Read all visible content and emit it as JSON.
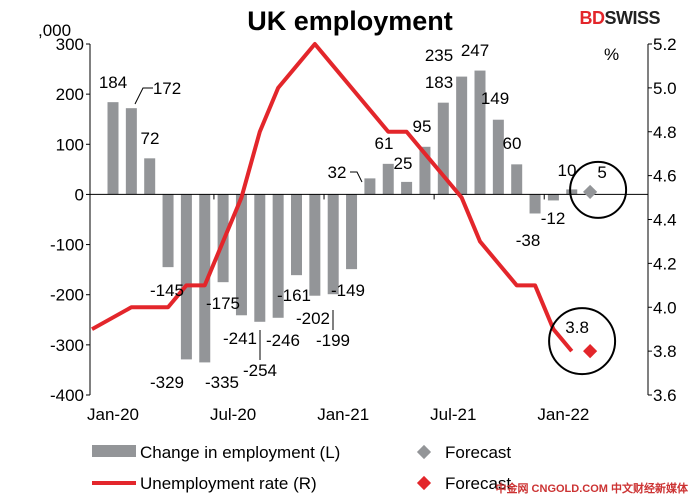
{
  "chart_data": {
    "type": "bar+line",
    "title": "UK employment",
    "left_unit": ",000",
    "right_unit": "%",
    "categories": [
      "Jan-20",
      "Feb-20",
      "Mar-20",
      "Apr-20",
      "May-20",
      "Jun-20",
      "Jul-20",
      "Aug-20",
      "Sep-20",
      "Oct-20",
      "Nov-20",
      "Dec-20",
      "Jan-21",
      "Feb-21",
      "Mar-21",
      "Apr-21",
      "May-21",
      "Jun-21",
      "Jul-21",
      "Aug-21",
      "Sep-21",
      "Oct-21",
      "Nov-21",
      "Dec-21",
      "Jan-22",
      "Feb-22",
      "Mar-22"
    ],
    "x_tick_labels": [
      "Jan-20",
      "Jul-20",
      "Jan-21",
      "Jul-21",
      "Jan-22"
    ],
    "left_ylim": [
      -400,
      300
    ],
    "left_ticks": [
      300,
      200,
      100,
      0,
      -100,
      -200,
      -300,
      -400
    ],
    "right_ylim": [
      3.6,
      5.2
    ],
    "right_ticks": [
      5.2,
      5.0,
      4.8,
      4.6,
      4.4,
      4.2,
      4.0,
      3.8,
      3.6
    ],
    "series": [
      {
        "name": "Change in employment (L)",
        "type": "bar",
        "color": "#939598",
        "values": [
          184,
          172,
          72,
          -145,
          -329,
          -335,
          -175,
          -241,
          -254,
          -246,
          -161,
          -202,
          -199,
          -149,
          32,
          61,
          25,
          95,
          183,
          235,
          247,
          149,
          60,
          -38,
          -12,
          10,
          null
        ]
      },
      {
        "name": "Forecast",
        "type": "marker",
        "color": "#939598",
        "values": [
          null,
          null,
          null,
          null,
          null,
          null,
          null,
          null,
          null,
          null,
          null,
          null,
          null,
          null,
          null,
          null,
          null,
          null,
          null,
          null,
          null,
          null,
          null,
          null,
          null,
          null,
          5
        ]
      },
      {
        "name": "Unemployment rate (R)",
        "type": "line",
        "color": "#e3262b",
        "values": [
          3.9,
          4.0,
          4.0,
          4.0,
          4.1,
          4.1,
          4.3,
          4.5,
          4.8,
          5.0,
          5.1,
          5.2,
          5.1,
          5.0,
          4.9,
          4.8,
          4.8,
          4.7,
          4.6,
          4.5,
          4.3,
          4.2,
          4.1,
          4.1,
          3.9,
          3.8,
          null
        ]
      },
      {
        "name": "Forecast",
        "type": "marker",
        "color": "#e3262b",
        "values": [
          null,
          null,
          null,
          null,
          null,
          null,
          null,
          null,
          null,
          null,
          null,
          null,
          null,
          null,
          null,
          null,
          null,
          null,
          null,
          null,
          null,
          null,
          null,
          null,
          null,
          null,
          3.8
        ]
      }
    ],
    "annotations": [
      "5",
      "3.8"
    ]
  },
  "brand": {
    "a": "BD",
    "b": "SWISS"
  },
  "watermark": "中金网 CNGOLD.COM 中文财经新媒体"
}
